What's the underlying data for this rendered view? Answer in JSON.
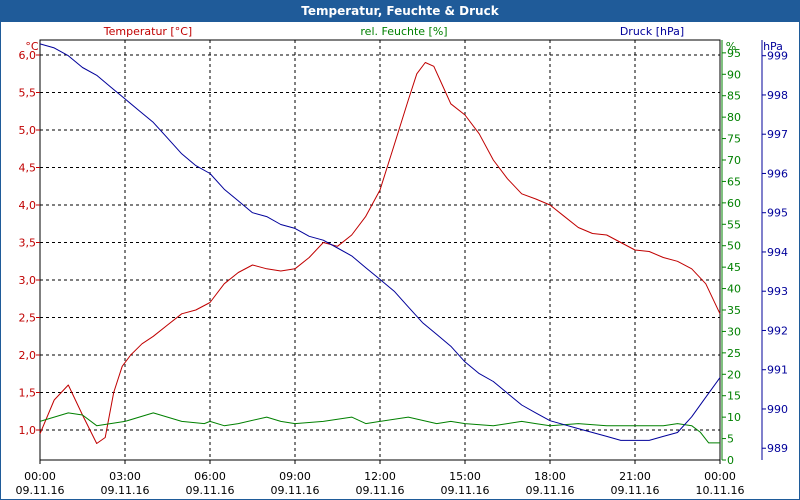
{
  "colors": {
    "titlebar": "#1f5b99",
    "temperature": "#c00000",
    "humidity": "#008000",
    "pressure": "#00009a",
    "grid": "#000000"
  },
  "chart_data": {
    "type": "line",
    "title": "Temperatur, Feuchte & Druck",
    "x_ticks": [
      {
        "time": "00:00",
        "date": "09.11.16"
      },
      {
        "time": "03:00",
        "date": "09.11.16"
      },
      {
        "time": "06:00",
        "date": "09.11.16"
      },
      {
        "time": "09:00",
        "date": "09.11.16"
      },
      {
        "time": "12:00",
        "date": "09.11.16"
      },
      {
        "time": "15:00",
        "date": "09.11.16"
      },
      {
        "time": "18:00",
        "date": "09.11.16"
      },
      {
        "time": "21:00",
        "date": "09.11.16"
      },
      {
        "time": "00:00",
        "date": "10.11.16"
      }
    ],
    "x_range_hours": [
      0,
      24
    ],
    "axes": {
      "temperature": {
        "label": "Temperatur [°C]",
        "unit": "°C",
        "range": [
          0.6,
          6.2
        ],
        "ticks": [
          "6,0",
          "5,5",
          "5,0",
          "4,5",
          "4,0",
          "3,5",
          "3,0",
          "2,5",
          "2,0",
          "1,5",
          "1,0"
        ],
        "tick_values": [
          6.0,
          5.5,
          5.0,
          4.5,
          4.0,
          3.5,
          3.0,
          2.5,
          2.0,
          1.5,
          1.0
        ]
      },
      "humidity": {
        "label": "rel. Feuchte [%]",
        "unit": "%",
        "range": [
          0,
          98
        ],
        "ticks": [
          "95",
          "90",
          "85",
          "80",
          "75",
          "70",
          "65",
          "60",
          "55",
          "50",
          "45",
          "40",
          "35",
          "30",
          "25",
          "20",
          "15",
          "10",
          "5",
          "0"
        ],
        "tick_values": [
          95,
          90,
          85,
          80,
          75,
          70,
          65,
          60,
          55,
          50,
          45,
          40,
          35,
          30,
          25,
          20,
          15,
          10,
          5,
          0
        ]
      },
      "pressure": {
        "label": "Druck [hPa]",
        "unit": "hPa",
        "range": [
          988.7,
          999.4
        ],
        "ticks": [
          "999",
          "998",
          "997",
          "996",
          "995",
          "994",
          "993",
          "992",
          "991",
          "990",
          "989"
        ],
        "tick_values": [
          999,
          998,
          997,
          996,
          995,
          994,
          993,
          992,
          991,
          990,
          989
        ]
      }
    },
    "series": [
      {
        "name": "Temperatur [°C]",
        "axis": "temperature",
        "x": [
          0,
          0.5,
          1,
          1.5,
          2,
          2.3,
          2.6,
          2.9,
          3.2,
          3.6,
          4,
          4.5,
          5,
          5.5,
          6,
          6.5,
          7,
          7.5,
          8,
          8.5,
          9,
          9.5,
          10,
          10.5,
          11,
          11.5,
          12,
          12.5,
          13,
          13.3,
          13.6,
          13.9,
          14.2,
          14.5,
          15,
          15.5,
          16,
          16.5,
          17,
          17.5,
          18,
          18.5,
          19,
          19.5,
          20,
          20.5,
          21,
          21.5,
          22,
          22.5,
          23,
          23.5,
          24
        ],
        "values": [
          0.95,
          1.4,
          1.6,
          1.2,
          0.82,
          0.9,
          1.5,
          1.85,
          2.0,
          2.15,
          2.25,
          2.4,
          2.55,
          2.6,
          2.7,
          2.95,
          3.1,
          3.2,
          3.15,
          3.12,
          3.15,
          3.3,
          3.5,
          3.45,
          3.6,
          3.85,
          4.2,
          4.8,
          5.4,
          5.75,
          5.9,
          5.85,
          5.6,
          5.35,
          5.2,
          4.95,
          4.6,
          4.35,
          4.15,
          4.08,
          4.0,
          3.85,
          3.7,
          3.62,
          3.6,
          3.5,
          3.4,
          3.38,
          3.3,
          3.25,
          3.15,
          2.95,
          2.55
        ]
      },
      {
        "name": "rel. Feuchte [%]",
        "axis": "humidity",
        "x": [
          0,
          0.5,
          1,
          1.5,
          2,
          3,
          4,
          5,
          5.8,
          6,
          6.5,
          7,
          8,
          8.5,
          9,
          10,
          11,
          11.5,
          12,
          13,
          14,
          14.5,
          15,
          16,
          17,
          17.5,
          18,
          19,
          20,
          21,
          22,
          22.5,
          23,
          23.3,
          23.6,
          24
        ],
        "values": [
          9,
          10,
          11,
          10.5,
          8,
          9,
          11,
          9,
          8.5,
          9,
          8,
          8.5,
          10,
          9,
          8.5,
          9,
          10,
          8.5,
          9,
          10,
          8.5,
          9,
          8.5,
          8,
          9,
          8.5,
          8,
          8.5,
          8,
          8,
          8,
          8.5,
          8,
          6.5,
          4,
          4
        ]
      },
      {
        "name": "Druck [hPa]",
        "axis": "pressure",
        "x": [
          0,
          0.5,
          1,
          1.5,
          2,
          2.5,
          3,
          3.5,
          4,
          4.5,
          5,
          5.5,
          6,
          6.5,
          7,
          7.5,
          8,
          8.5,
          9,
          9.5,
          10,
          10.5,
          11,
          11.5,
          12,
          12.5,
          13,
          13.5,
          14,
          14.5,
          15,
          15.5,
          16,
          16.5,
          17,
          17.5,
          18,
          18.5,
          19,
          19.5,
          20,
          20.5,
          21,
          21.5,
          22,
          22.5,
          23,
          23.5,
          24
        ],
        "values": [
          999.3,
          999.2,
          999.0,
          998.7,
          998.5,
          998.2,
          997.9,
          997.6,
          997.3,
          996.9,
          996.5,
          996.2,
          996.0,
          995.6,
          995.3,
          995.0,
          994.9,
          994.7,
          994.6,
          994.4,
          994.3,
          994.1,
          993.9,
          993.6,
          993.3,
          993.0,
          992.6,
          992.2,
          991.9,
          991.6,
          991.2,
          990.9,
          990.7,
          990.4,
          990.1,
          989.9,
          989.7,
          989.6,
          989.5,
          989.4,
          989.3,
          989.2,
          989.2,
          989.2,
          989.3,
          989.4,
          989.8,
          990.3,
          990.8
        ]
      }
    ]
  }
}
